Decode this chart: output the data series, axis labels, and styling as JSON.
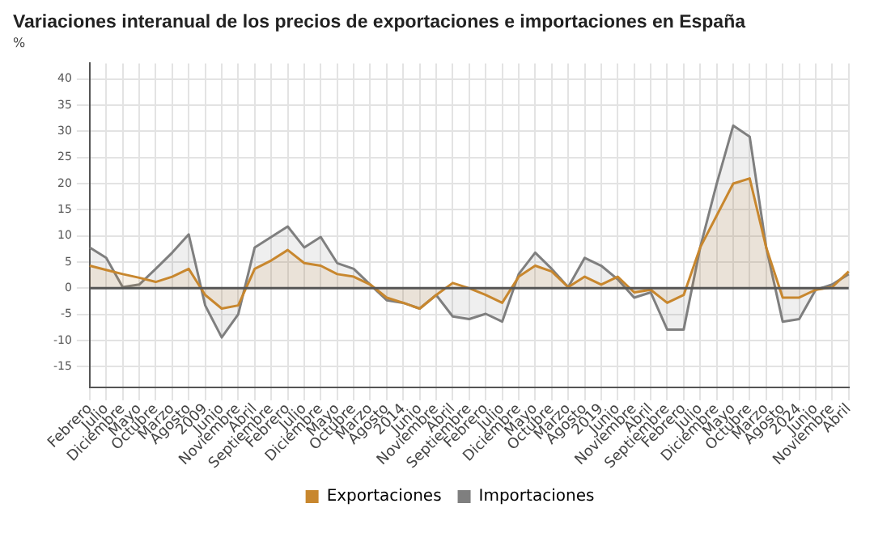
{
  "chart_data": {
    "type": "area",
    "title": "Variaciones interanual de los precios de exportaciones e importaciones en España",
    "ylabel": "%",
    "categories": [
      "Febrero",
      "Julio",
      "Diciembre",
      "Mayo",
      "Octubre",
      "Marzo",
      "Agosto",
      "2009",
      "Junio",
      "Noviembre",
      "Abril",
      "Septiembre",
      "Febrero",
      "Julio",
      "Diciembre",
      "Mayo",
      "Octubre",
      "Marzo",
      "Agosto",
      "2014",
      "Junio",
      "Noviembre",
      "Abril",
      "Septiembre",
      "Febrero",
      "Julio",
      "Diciembre",
      "Mayo",
      "Octubre",
      "Marzo",
      "Agosto",
      "2019",
      "Junio",
      "Noviembre",
      "Abril",
      "Septiembre",
      "Febrero",
      "Julio",
      "Diciembre",
      "Mayo",
      "Octubre",
      "Marzo",
      "Agosto",
      "2024",
      "Junio",
      "Noviembre",
      "Abril"
    ],
    "series": [
      {
        "name": "Exportaciones",
        "color": "#c8872e",
        "values": [
          4.3,
          3.5,
          2.7,
          2,
          1.2,
          2.2,
          3.7,
          -1.3,
          -3.9,
          -3.3,
          3.7,
          5.3,
          7.3,
          4.8,
          4.3,
          2.7,
          2.2,
          0.7,
          -1.8,
          -2.8,
          -3.9,
          -1.3,
          1,
          0,
          -1.3,
          -2.8,
          2.2,
          4.3,
          3.2,
          0.2,
          2.2,
          0.7,
          2.2,
          -0.8,
          -0.3,
          -2.8,
          -1.3,
          7.8,
          13.9,
          20,
          21,
          7.8,
          -1.8,
          -1.8,
          -0.3,
          0.2,
          3.2
        ]
      },
      {
        "name": "Importaciones",
        "color": "#7f7f7f",
        "values": [
          7.8,
          5.8,
          0.2,
          0.7,
          3.7,
          6.8,
          10.3,
          -3.3,
          -9.4,
          -5,
          7.8,
          9.8,
          11.8,
          7.8,
          9.8,
          4.8,
          3.7,
          0.7,
          -2.3,
          -2.8,
          -3.9,
          -1.3,
          -5.4,
          -5.9,
          -4.9,
          -6.4,
          2.7,
          6.8,
          3.7,
          0.2,
          5.8,
          4.3,
          1.7,
          -1.8,
          -0.8,
          -7.9,
          -7.9,
          7.8,
          20,
          31.1,
          29,
          7.8,
          -6.4,
          -5.9,
          -0.3,
          0.7,
          2.7
        ]
      }
    ],
    "ylim": [
      -19,
      43
    ],
    "yticks": [
      -15,
      -10,
      -5,
      0,
      5,
      10,
      15,
      20,
      25,
      30,
      35,
      40
    ],
    "ref_lines": [
      {
        "axis": "y",
        "value": 0,
        "color": "#555555"
      }
    ],
    "grid": true,
    "legend": "bottom"
  }
}
